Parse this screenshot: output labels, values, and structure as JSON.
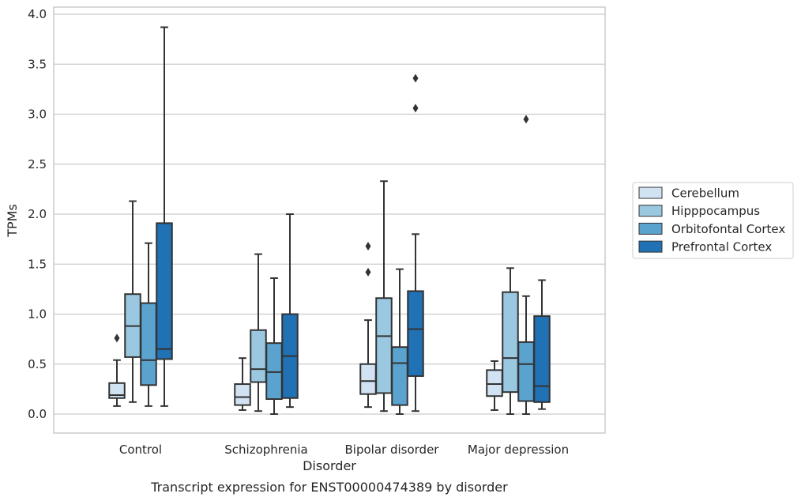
{
  "chart_data": {
    "type": "box",
    "title": "",
    "caption": "Transcript expression for ENST00000474389 by disorder",
    "xlabel": "Disorder",
    "ylabel": "TPMs",
    "categories": [
      "Control",
      "Schizophrenia",
      "Bipolar disorder",
      "Major depression"
    ],
    "ylim": [
      -0.18,
      4.07
    ],
    "yticks": [
      "0.0",
      "0.5",
      "1.0",
      "1.5",
      "2.0",
      "2.5",
      "3.0",
      "3.5",
      "4.0"
    ],
    "grid": "horizontal",
    "legend_position": "right",
    "series": [
      {
        "name": "Cerebellum",
        "color": "#d1e2f2",
        "boxes": [
          {
            "whisker_low": 0.08,
            "q1": 0.16,
            "median": 0.19,
            "q3": 0.31,
            "whisker_high": 0.54,
            "outliers": [
              0.76
            ]
          },
          {
            "whisker_low": 0.04,
            "q1": 0.09,
            "median": 0.17,
            "q3": 0.3,
            "whisker_high": 0.56,
            "outliers": []
          },
          {
            "whisker_low": 0.07,
            "q1": 0.2,
            "median": 0.33,
            "q3": 0.5,
            "whisker_high": 0.94,
            "outliers": [
              1.42,
              1.68
            ]
          },
          {
            "whisker_low": 0.04,
            "q1": 0.18,
            "median": 0.3,
            "q3": 0.44,
            "whisker_high": 0.53,
            "outliers": []
          }
        ]
      },
      {
        "name": "Hipppocampus",
        "color": "#9ac8e0",
        "boxes": [
          {
            "whisker_low": 0.12,
            "q1": 0.57,
            "median": 0.88,
            "q3": 1.2,
            "whisker_high": 2.13,
            "outliers": []
          },
          {
            "whisker_low": 0.03,
            "q1": 0.32,
            "median": 0.45,
            "q3": 0.84,
            "whisker_high": 1.6,
            "outliers": []
          },
          {
            "whisker_low": 0.03,
            "q1": 0.21,
            "median": 0.78,
            "q3": 1.16,
            "whisker_high": 2.33,
            "outliers": []
          },
          {
            "whisker_low": 0.0,
            "q1": 0.22,
            "median": 0.56,
            "q3": 1.22,
            "whisker_high": 1.46,
            "outliers": []
          }
        ]
      },
      {
        "name": "Orbitofontal Cortex",
        "color": "#5ba3cf",
        "boxes": [
          {
            "whisker_low": 0.08,
            "q1": 0.29,
            "median": 0.54,
            "q3": 1.11,
            "whisker_high": 1.71,
            "outliers": []
          },
          {
            "whisker_low": 0.0,
            "q1": 0.15,
            "median": 0.42,
            "q3": 0.71,
            "whisker_high": 1.36,
            "outliers": []
          },
          {
            "whisker_low": 0.0,
            "q1": 0.09,
            "median": 0.51,
            "q3": 0.67,
            "whisker_high": 1.45,
            "outliers": []
          },
          {
            "whisker_low": 0.0,
            "q1": 0.13,
            "median": 0.5,
            "q3": 0.72,
            "whisker_high": 1.18,
            "outliers": [
              2.95
            ]
          }
        ]
      },
      {
        "name": "Prefrontal Cortex",
        "color": "#2171b5",
        "boxes": [
          {
            "whisker_low": 0.08,
            "q1": 0.55,
            "median": 0.65,
            "q3": 1.91,
            "whisker_high": 3.87,
            "outliers": []
          },
          {
            "whisker_low": 0.07,
            "q1": 0.16,
            "median": 0.58,
            "q3": 1.0,
            "whisker_high": 2.0,
            "outliers": []
          },
          {
            "whisker_low": 0.03,
            "q1": 0.38,
            "median": 0.85,
            "q3": 1.23,
            "whisker_high": 1.8,
            "outliers": [
              3.06,
              3.36
            ]
          },
          {
            "whisker_low": 0.05,
            "q1": 0.12,
            "median": 0.28,
            "q3": 0.98,
            "whisker_high": 1.34,
            "outliers": []
          }
        ]
      }
    ]
  }
}
